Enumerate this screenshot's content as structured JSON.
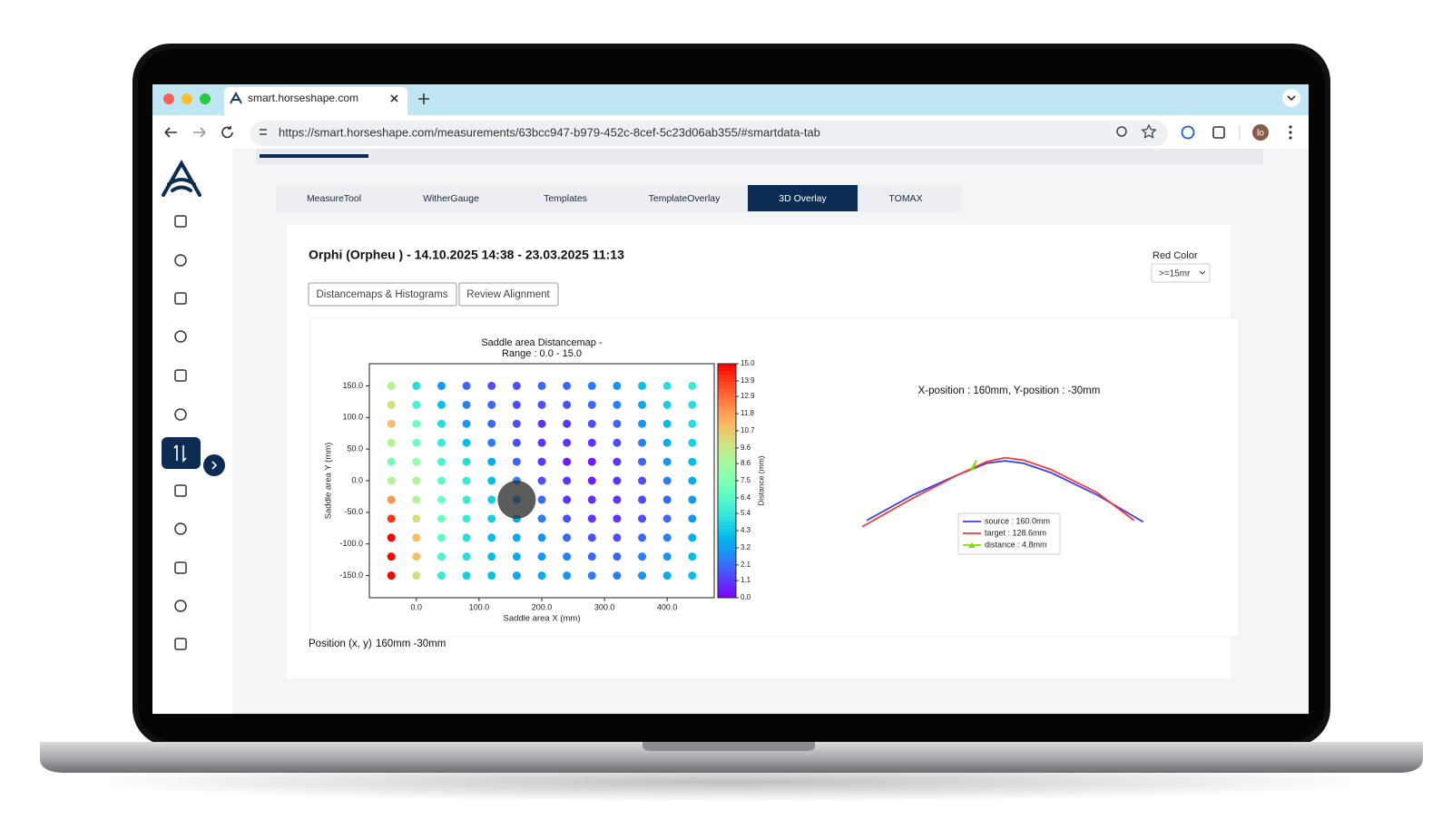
{
  "browser": {
    "tab_title": "smart.horseshape.com",
    "url": "https://smart.horseshape.com/measurements/63bcc947-b979-452c-8cef-5c23d06ab355/#smartdata-tab",
    "profile": "lo"
  },
  "tabs": [
    "MeasureTool",
    "WitherGauge",
    "Templates",
    "TemplateOverlay",
    "3D Overlay",
    "TOMAX"
  ],
  "active_tab": 4,
  "heading": "Orphi (Orpheu ) - 14.10.2025 14:38 - 23.03.2025 11:13",
  "buttons": [
    "Distancemaps & Histograms",
    "Review Alignment"
  ],
  "red_color": {
    "label": "Red Color",
    "selected": ">=15mr"
  },
  "distancemap": {
    "type": "scatter",
    "title": [
      "Saddle area Distancemap -",
      "Range : 0.0 - 15.0"
    ],
    "xlabel": "Saddle area X (mm)",
    "ylabel": "Saddle area Y (mm)",
    "colorbar_label": "Distance (mm)",
    "xlim": [
      -75,
      475
    ],
    "ylim": [
      -185,
      185
    ],
    "xticks": [
      {
        "value": 0,
        "label": "0.0"
      },
      {
        "value": 100,
        "label": "100.0"
      },
      {
        "value": 200,
        "label": "200.0"
      },
      {
        "value": 300,
        "label": "300.0"
      },
      {
        "value": 400,
        "label": "400.0"
      }
    ],
    "yticks": [
      {
        "value": 150,
        "label": "150.0"
      },
      {
        "value": 100,
        "label": "100.0"
      },
      {
        "value": 50,
        "label": "50.0"
      },
      {
        "value": 0,
        "label": "0.0"
      },
      {
        "value": -50,
        "label": "-50.0"
      },
      {
        "value": -100,
        "label": "-100.0"
      },
      {
        "value": -150,
        "label": "-150.0"
      }
    ],
    "clim": [
      0,
      15
    ],
    "cticks": [
      {
        "value": 0,
        "label": "0.0"
      },
      1.1,
      2.1,
      3.2,
      4.3,
      5.4,
      6.4,
      7.5,
      8.6,
      9.6,
      10.7,
      11.8,
      12.9,
      13.9,
      {
        "value": 15,
        "label": "15.0"
      }
    ],
    "colormap": "rainbow",
    "x": [
      -40,
      0,
      40,
      80,
      120,
      160,
      200,
      240,
      280,
      320,
      360,
      400,
      440
    ],
    "y": [
      150,
      120,
      90,
      60,
      30,
      0,
      -30,
      -60,
      -90,
      -120,
      -150
    ],
    "values": [
      [
        9,
        5,
        3,
        2,
        1.5,
        1.5,
        2,
        2,
        2.5,
        3,
        4,
        5,
        5.5
      ],
      [
        10,
        6,
        4,
        2.5,
        2,
        1.5,
        1.5,
        1.5,
        2,
        2.5,
        3.5,
        4.5,
        5
      ],
      [
        11,
        7,
        5,
        3,
        2,
        1.5,
        1,
        1,
        1.5,
        2,
        3,
        4,
        5
      ],
      [
        9,
        7,
        5.5,
        4,
        2.5,
        1.5,
        1,
        1,
        1,
        1.5,
        2.5,
        3.5,
        4.5
      ],
      [
        7,
        8,
        6,
        5,
        3.5,
        2,
        1,
        0.5,
        0.5,
        1,
        2,
        3,
        4
      ],
      [
        9,
        9,
        6.5,
        5.5,
        4,
        2.5,
        1.5,
        1,
        0.5,
        1,
        1.5,
        2.5,
        3.5
      ],
      [
        12,
        9,
        7,
        5.5,
        4.5,
        3,
        2,
        1,
        1,
        1,
        1.5,
        2,
        3
      ],
      [
        14,
        10,
        7,
        5.5,
        4.5,
        3.5,
        2.5,
        1.5,
        1,
        1,
        1.5,
        2,
        3
      ],
      [
        15,
        11,
        6.5,
        5,
        4,
        3.5,
        3,
        2,
        1.5,
        1.5,
        2,
        2.5,
        3.5
      ],
      [
        15,
        11,
        6,
        5,
        4,
        3.5,
        3,
        2.5,
        2,
        2,
        2.5,
        3,
        4
      ],
      [
        15,
        10,
        5.5,
        4.5,
        4,
        3.5,
        3.5,
        3,
        2.5,
        2.5,
        3,
        3.5,
        4
      ]
    ],
    "marker": [
      160,
      -30
    ]
  },
  "profile": {
    "type": "line",
    "title": "X-position : 160mm, Y-position : -30mm",
    "xlim": [
      -160,
      160
    ],
    "ylim": [
      -100,
      60
    ],
    "series": [
      {
        "name": "source : 160.0mm",
        "color": "#3b3bf0",
        "x": [
          -150,
          -100,
          -50,
          -20,
          0,
          20,
          50,
          100,
          150
        ],
        "values": [
          -70,
          -38,
          -12,
          2,
          5,
          2,
          -10,
          -38,
          -72
        ]
      },
      {
        "name": "target : 128.6mm",
        "color": "#f03b3b",
        "x": [
          -155,
          -100,
          -50,
          -20,
          0,
          20,
          50,
          100,
          140
        ],
        "values": [
          -78,
          -42,
          -12,
          4,
          9,
          6,
          -6,
          -35,
          -70
        ]
      }
    ],
    "distance": {
      "name": "distance : 4.8mm",
      "color": "#7fe000"
    }
  },
  "position": {
    "label": "Position (x, y)",
    "value": "160mm -30mm"
  }
}
